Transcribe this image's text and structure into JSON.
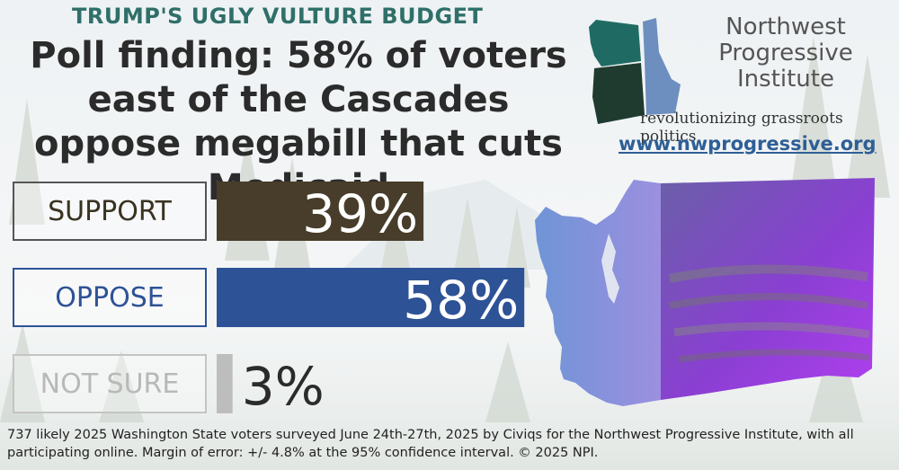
{
  "kicker": "TRUMP'S UGLY VULTURE BUDGET",
  "headline": {
    "lead": "Poll finding:",
    "rest": " 58% of voters east of the Cascades oppose megabill that cuts Medicaid"
  },
  "org": {
    "name_lines": [
      "Northwest",
      "Progressive",
      "Institute"
    ],
    "tagline": "revolutionizing grassroots politics",
    "url": "www.nwprogressive.org"
  },
  "chart_data": {
    "type": "bar",
    "orientation": "horizontal",
    "categories": [
      "SUPPORT",
      "OPPOSE",
      "NOT SURE"
    ],
    "values": [
      39,
      58,
      3
    ],
    "value_labels": [
      "39%",
      "58%",
      "3%"
    ],
    "colors": [
      "#473d2a",
      "#2e5296",
      "#bdbdbd"
    ],
    "label_colors": [
      "#3a3322",
      "#2e5296",
      "#b8b8b8"
    ],
    "label_border_colors": [
      "#555555",
      "#2e5296",
      "#c4c4c4"
    ],
    "xlim": [
      0,
      100
    ],
    "legend": "none",
    "grid": false
  },
  "footnote": "737 likely 2025 Washington State voters surveyed June 24th-27th, 2025 by Civiqs for the Northwest Progressive Institute, with all participating online. Margin of error: +/- 4.8% at the 95% confidence interval. © 2025 NPI."
}
